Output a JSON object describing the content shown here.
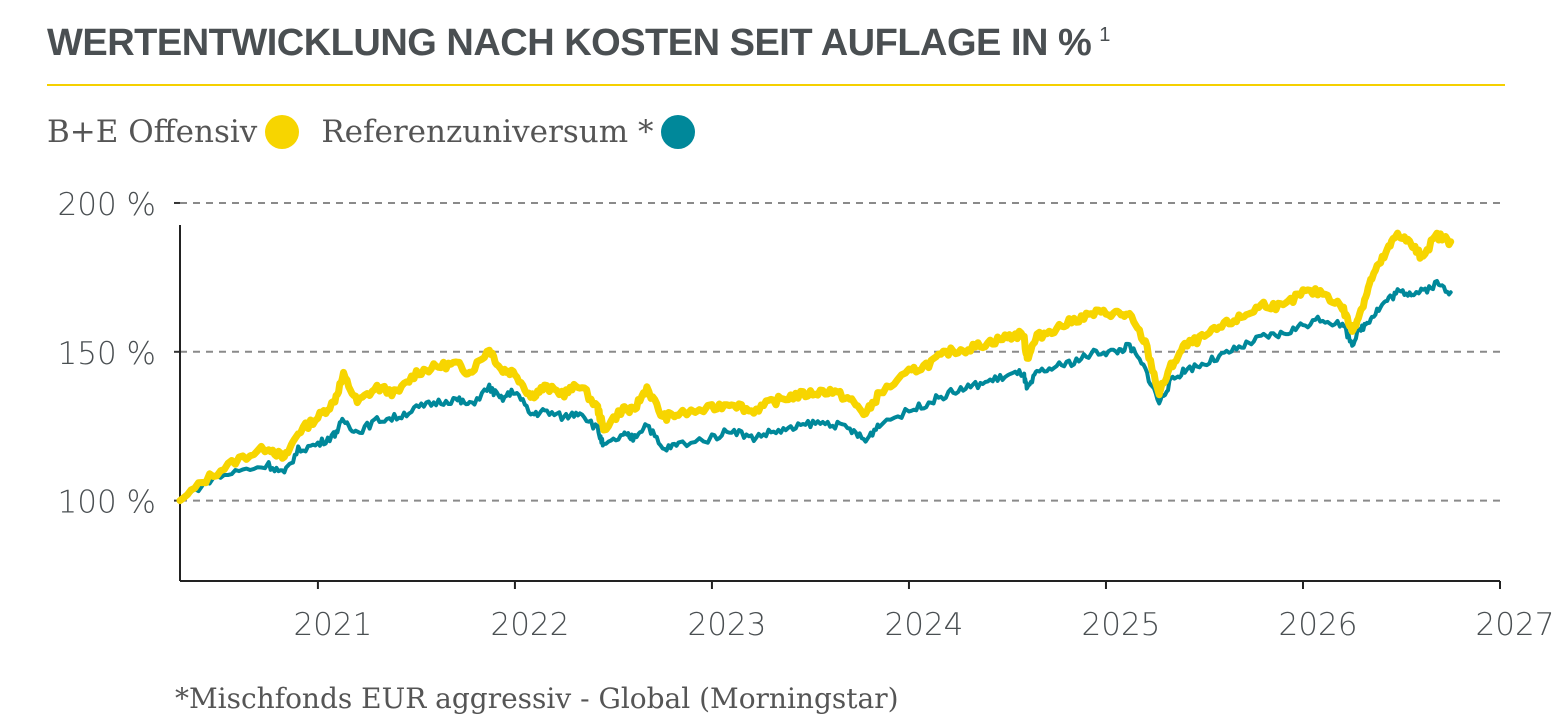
{
  "title": "WERTENTWICKLUNG NACH KOSTEN SEIT AUFLAGE IN %",
  "title_sup": "1",
  "footnote": "*Mischfonds EUR aggressiv - Global (Morningstar)",
  "colors": {
    "fund": "#f7d500",
    "reference": "#00889a",
    "rule": "#f5d000",
    "text": "#4a4f52"
  },
  "chart_data": {
    "type": "line",
    "title": "WERTENTWICKLUNG NACH KOSTEN SEIT AUFLAGE IN %",
    "xlabel": "",
    "ylabel": "",
    "xlim": [
      2020.3,
      2027.0
    ],
    "ylim": [
      73,
      201
    ],
    "y_ticks": [
      {
        "value": 100,
        "label": "100 %"
      },
      {
        "value": 150,
        "label": "150 %"
      },
      {
        "value": 200,
        "label": "200 %"
      }
    ],
    "x_ticks": [
      {
        "value": 2021,
        "label": "2021"
      },
      {
        "value": 2022,
        "label": "2022"
      },
      {
        "value": 2023,
        "label": "2023"
      },
      {
        "value": 2024,
        "label": "2024"
      },
      {
        "value": 2025,
        "label": "2025"
      },
      {
        "value": 2026,
        "label": "2026"
      },
      {
        "value": 2027,
        "label": "2027"
      }
    ],
    "grid": "horizontal-dashed",
    "legend_position": "top-left",
    "series": [
      {
        "name": "B+E Offensiv",
        "color": "#f7d500",
        "points": [
          [
            2020.3,
            100
          ],
          [
            2020.45,
            108
          ],
          [
            2020.6,
            114
          ],
          [
            2020.75,
            118
          ],
          [
            2020.83,
            114
          ],
          [
            2020.9,
            123
          ],
          [
            2021.0,
            128
          ],
          [
            2021.08,
            133
          ],
          [
            2021.13,
            142
          ],
          [
            2021.2,
            133
          ],
          [
            2021.3,
            138
          ],
          [
            2021.4,
            136
          ],
          [
            2021.5,
            143
          ],
          [
            2021.6,
            145
          ],
          [
            2021.7,
            146
          ],
          [
            2021.77,
            143
          ],
          [
            2021.87,
            151
          ],
          [
            2021.93,
            144
          ],
          [
            2022.0,
            143
          ],
          [
            2022.08,
            135
          ],
          [
            2022.15,
            138
          ],
          [
            2022.25,
            136
          ],
          [
            2022.33,
            139
          ],
          [
            2022.42,
            131
          ],
          [
            2022.45,
            124
          ],
          [
            2022.55,
            131
          ],
          [
            2022.6,
            130
          ],
          [
            2022.67,
            138
          ],
          [
            2022.75,
            128
          ],
          [
            2022.83,
            129
          ],
          [
            2023.0,
            131
          ],
          [
            2023.1,
            133
          ],
          [
            2023.2,
            130
          ],
          [
            2023.3,
            133
          ],
          [
            2023.4,
            135
          ],
          [
            2023.5,
            136
          ],
          [
            2023.6,
            137
          ],
          [
            2023.7,
            134
          ],
          [
            2023.78,
            129
          ],
          [
            2023.85,
            136
          ],
          [
            2024.0,
            143
          ],
          [
            2024.1,
            146
          ],
          [
            2024.2,
            150
          ],
          [
            2024.3,
            151
          ],
          [
            2024.4,
            153
          ],
          [
            2024.5,
            155
          ],
          [
            2024.58,
            156
          ],
          [
            2024.6,
            148
          ],
          [
            2024.65,
            155
          ],
          [
            2024.75,
            158
          ],
          [
            2024.85,
            161
          ],
          [
            2024.95,
            163
          ],
          [
            2025.05,
            163
          ],
          [
            2025.12,
            162
          ],
          [
            2025.2,
            153
          ],
          [
            2025.27,
            136
          ],
          [
            2025.33,
            145
          ],
          [
            2025.4,
            152
          ],
          [
            2025.5,
            155
          ],
          [
            2025.6,
            159
          ],
          [
            2025.7,
            162
          ],
          [
            2025.8,
            166
          ],
          [
            2025.9,
            165
          ],
          [
            2026.0,
            170
          ],
          [
            2026.1,
            170
          ],
          [
            2026.2,
            165
          ],
          [
            2026.25,
            157
          ],
          [
            2026.3,
            165
          ],
          [
            2026.35,
            175
          ],
          [
            2026.42,
            183
          ],
          [
            2026.48,
            190
          ],
          [
            2026.55,
            186
          ],
          [
            2026.6,
            182
          ],
          [
            2026.68,
            189
          ],
          [
            2026.75,
            187
          ]
        ]
      },
      {
        "name": "Referenzuniversum *",
        "color": "#00889a",
        "points": [
          [
            2020.3,
            100
          ],
          [
            2020.45,
            107
          ],
          [
            2020.6,
            110
          ],
          [
            2020.75,
            112
          ],
          [
            2020.83,
            109
          ],
          [
            2020.9,
            117
          ],
          [
            2021.0,
            119
          ],
          [
            2021.08,
            122
          ],
          [
            2021.13,
            127
          ],
          [
            2021.2,
            123
          ],
          [
            2021.3,
            127
          ],
          [
            2021.4,
            128
          ],
          [
            2021.5,
            131
          ],
          [
            2021.6,
            133
          ],
          [
            2021.7,
            134
          ],
          [
            2021.77,
            132
          ],
          [
            2021.87,
            138
          ],
          [
            2021.93,
            134
          ],
          [
            2022.0,
            137
          ],
          [
            2022.08,
            129
          ],
          [
            2022.15,
            130
          ],
          [
            2022.25,
            128
          ],
          [
            2022.33,
            130
          ],
          [
            2022.42,
            124
          ],
          [
            2022.45,
            118
          ],
          [
            2022.55,
            122
          ],
          [
            2022.6,
            121
          ],
          [
            2022.67,
            126
          ],
          [
            2022.75,
            117
          ],
          [
            2022.83,
            119
          ],
          [
            2023.0,
            121
          ],
          [
            2023.1,
            124
          ],
          [
            2023.2,
            121
          ],
          [
            2023.3,
            123
          ],
          [
            2023.4,
            124
          ],
          [
            2023.5,
            126
          ],
          [
            2023.6,
            126
          ],
          [
            2023.7,
            124
          ],
          [
            2023.78,
            120
          ],
          [
            2023.85,
            126
          ],
          [
            2024.0,
            130
          ],
          [
            2024.1,
            133
          ],
          [
            2024.2,
            136
          ],
          [
            2024.3,
            138
          ],
          [
            2024.4,
            140
          ],
          [
            2024.5,
            142
          ],
          [
            2024.58,
            143
          ],
          [
            2024.6,
            137
          ],
          [
            2024.65,
            143
          ],
          [
            2024.75,
            145
          ],
          [
            2024.85,
            147
          ],
          [
            2024.95,
            150
          ],
          [
            2025.05,
            150
          ],
          [
            2025.12,
            152
          ],
          [
            2025.2,
            144
          ],
          [
            2025.27,
            133
          ],
          [
            2025.33,
            140
          ],
          [
            2025.4,
            144
          ],
          [
            2025.5,
            146
          ],
          [
            2025.6,
            149
          ],
          [
            2025.7,
            152
          ],
          [
            2025.8,
            155
          ],
          [
            2025.9,
            156
          ],
          [
            2026.0,
            159
          ],
          [
            2026.1,
            161
          ],
          [
            2026.2,
            159
          ],
          [
            2026.25,
            153
          ],
          [
            2026.3,
            158
          ],
          [
            2026.35,
            162
          ],
          [
            2026.42,
            167
          ],
          [
            2026.48,
            170
          ],
          [
            2026.55,
            170
          ],
          [
            2026.6,
            170
          ],
          [
            2026.68,
            173
          ],
          [
            2026.75,
            170
          ]
        ]
      }
    ]
  }
}
